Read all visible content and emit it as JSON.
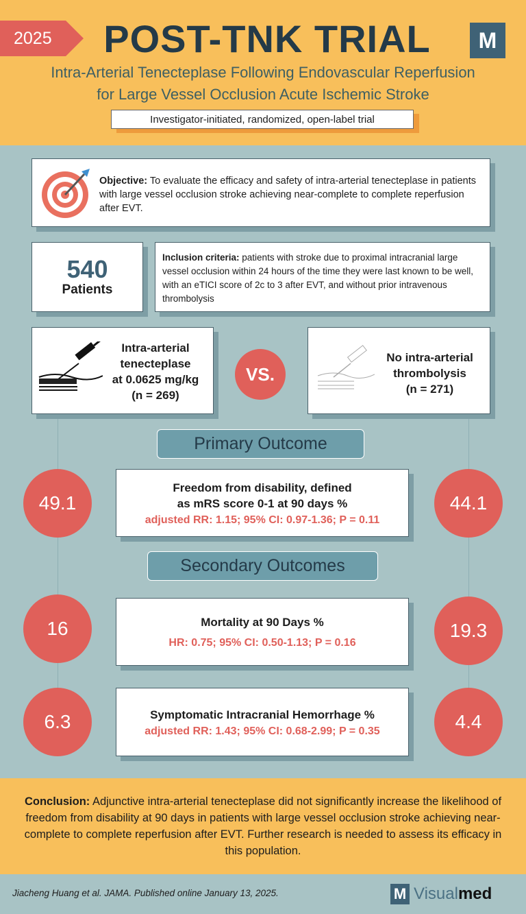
{
  "header": {
    "year": "2025",
    "title": "POST-TNK TRIAL",
    "logo_letter": "M",
    "subtitle_line1": "Intra-Arterial Tenecteplase Following Endovascular Reperfusion",
    "subtitle_line2": "for Large Vessel Occlusion Acute Ischemic Stroke",
    "design": "Investigator-initiated, randomized, open-label trial"
  },
  "objective": {
    "label": "Objective:",
    "text": " To evaluate the efficacy and safety of intra-arterial tenecteplase in patients with large vessel occlusion stroke achieving near-complete to complete reperfusion after EVT."
  },
  "patients": {
    "count": "540",
    "label": "Patients"
  },
  "inclusion": {
    "label": "Inclusion criteria:",
    "text": " patients with stroke due to proximal intracranial large vessel occlusion within 24 hours of the time they were last known to be well, with an eTICI score of 2c to 3 after EVT, and without prior intravenous thrombolysis"
  },
  "arms": {
    "left": {
      "line1": "Intra-arterial",
      "line2": "tenecteplase",
      "line3": "at 0.0625 mg/kg",
      "n": "(n = 269)"
    },
    "vs": "VS.",
    "right": {
      "line1": "No intra-arterial",
      "line2": "thrombolysis",
      "n": "(n = 271)"
    }
  },
  "primary": {
    "heading": "Primary Outcome",
    "title_line1": "Freedom from disability, defined",
    "title_line2": "as mRS score 0-1 at 90 days %",
    "stat": "adjusted RR: 1.15; 95% CI: 0.97-1.36; P = 0.11",
    "left": "49.1",
    "right": "44.1"
  },
  "secondary": {
    "heading": "Secondary Outcomes",
    "items": [
      {
        "title": "Mortality at 90 Days %",
        "stat": "HR: 0.75; 95% CI: 0.50-1.13; P = 0.16",
        "left": "16",
        "right": "19.3"
      },
      {
        "title": "Symptomatic Intracranial Hemorrhage %",
        "stat": "adjusted RR: 1.43; 95% CI: 0.68-2.99; P = 0.35",
        "left": "6.3",
        "right": "4.4"
      }
    ]
  },
  "conclusion": {
    "label": "Conclusion:",
    "text": " Adjunctive intra-arterial tenecteplase did not significantly increase the likelihood of freedom from disability at 90 days in patients with large vessel occlusion stroke achieving near-complete to complete reperfusion after EVT. Further research is needed to assess its efficacy in this population."
  },
  "footer": {
    "citation": "Jiacheng Huang et al.  JAMA. Published online January 13, 2025.",
    "brand_light": "Visual",
    "brand_bold": "med",
    "logo_letter": "M"
  },
  "colors": {
    "orange": "#f8bf5b",
    "red": "#e0605a",
    "teal": "#a8c3c5",
    "navy": "#243a48"
  }
}
